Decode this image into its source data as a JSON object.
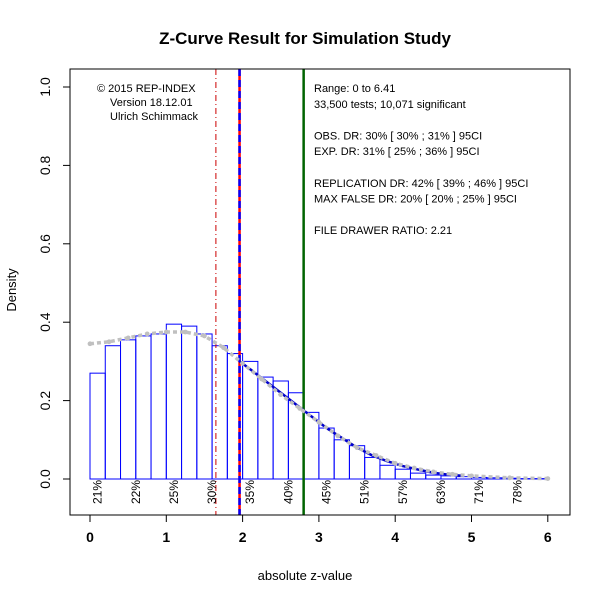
{
  "chart_data": {
    "type": "bar",
    "title": "Z-Curve Result for Simulation Study",
    "xlabel": "absolute z-value",
    "ylabel": "Density",
    "xlim": [
      0,
      6
    ],
    "ylim": [
      0,
      1.0
    ],
    "x_ticks": [
      "0",
      "1",
      "2",
      "3",
      "4",
      "5",
      "6"
    ],
    "y_ticks": [
      "0.0",
      "0.2",
      "0.4",
      "0.6",
      "0.8",
      "1.0"
    ],
    "histogram": {
      "bin_width": 0.2,
      "bins_start": [
        0,
        0.2,
        0.4,
        0.6,
        0.8,
        1.0,
        1.2,
        1.4,
        1.6,
        1.8,
        2.0,
        2.2,
        2.4,
        2.6,
        2.8,
        3.0,
        3.2,
        3.4,
        3.6,
        3.8,
        4.0,
        4.2,
        4.4,
        4.6,
        4.8,
        5.0,
        5.2,
        5.4,
        5.6,
        5.8
      ],
      "values": [
        0.27,
        0.34,
        0.355,
        0.365,
        0.37,
        0.395,
        0.39,
        0.37,
        0.34,
        0.32,
        0.3,
        0.26,
        0.25,
        0.22,
        0.17,
        0.13,
        0.1,
        0.085,
        0.055,
        0.035,
        0.025,
        0.015,
        0.01,
        0.008,
        0.006,
        0.004,
        0.003,
        0.002,
        0.001,
        0.001
      ],
      "color": "#0000ff"
    },
    "fitted_curve": {
      "x": [
        0,
        0.25,
        0.5,
        0.75,
        1.0,
        1.25,
        1.5,
        1.75,
        2.0,
        2.25,
        2.5,
        2.75,
        3.0,
        3.25,
        3.5,
        3.75,
        4.0,
        4.25,
        4.5,
        4.75,
        5.0,
        5.5,
        6.0
      ],
      "y": [
        0.345,
        0.35,
        0.36,
        0.37,
        0.375,
        0.375,
        0.365,
        0.335,
        0.295,
        0.255,
        0.215,
        0.18,
        0.145,
        0.11,
        0.08,
        0.06,
        0.04,
        0.028,
        0.018,
        0.012,
        0.008,
        0.003,
        0.001
      ],
      "color": "#c0c0c0"
    },
    "observed_curve": {
      "x": [
        1.96,
        2.1,
        2.3,
        2.5,
        2.7,
        2.9,
        3.1,
        3.3,
        3.5,
        3.7,
        3.9,
        4.1,
        4.3,
        4.5,
        4.7,
        4.9
      ],
      "y": [
        0.3,
        0.28,
        0.25,
        0.22,
        0.19,
        0.16,
        0.13,
        0.105,
        0.08,
        0.06,
        0.045,
        0.033,
        0.024,
        0.016,
        0.011,
        0.008
      ],
      "color": "#0000cc"
    },
    "vertical_lines": [
      {
        "x": 1.65,
        "color": "#cc0000",
        "style": "dashdot"
      },
      {
        "x": 1.96,
        "color": "#ff0000",
        "style": "solid"
      },
      {
        "x": 1.96,
        "color": "#0000ff",
        "style": "dashed"
      },
      {
        "x": 2.8,
        "color": "#006400",
        "style": "solid"
      }
    ],
    "power_labels": [
      {
        "x": 0.1,
        "text": "21%"
      },
      {
        "x": 0.6,
        "text": "22%"
      },
      {
        "x": 1.1,
        "text": "25%"
      },
      {
        "x": 1.6,
        "text": "30%"
      },
      {
        "x": 2.1,
        "text": "35%"
      },
      {
        "x": 2.6,
        "text": "40%"
      },
      {
        "x": 3.1,
        "text": "45%"
      },
      {
        "x": 3.6,
        "text": "51%"
      },
      {
        "x": 4.1,
        "text": "57%"
      },
      {
        "x": 4.6,
        "text": "63%"
      },
      {
        "x": 5.1,
        "text": "71%"
      },
      {
        "x": 5.6,
        "text": "78%"
      }
    ],
    "left_annotation": [
      "© 2015 REP-INDEX",
      "Version 18.12.01",
      "Ulrich Schimmack"
    ],
    "right_annotation": [
      "Range: 0 to 6.41",
      "33,500 tests; 10,071 significant",
      "",
      "OBS. DR: 30% [ 30% ; 31% ] 95CI",
      "EXP. DR: 31% [ 25% ; 36% ] 95CI",
      "",
      "REPLICATION DR: 42% [ 39% ; 46% ] 95CI",
      "MAX FALSE DR: 20% [ 20% ; 25% ] 95CI",
      "",
      "FILE DRAWER RATIO: 2.21"
    ]
  }
}
